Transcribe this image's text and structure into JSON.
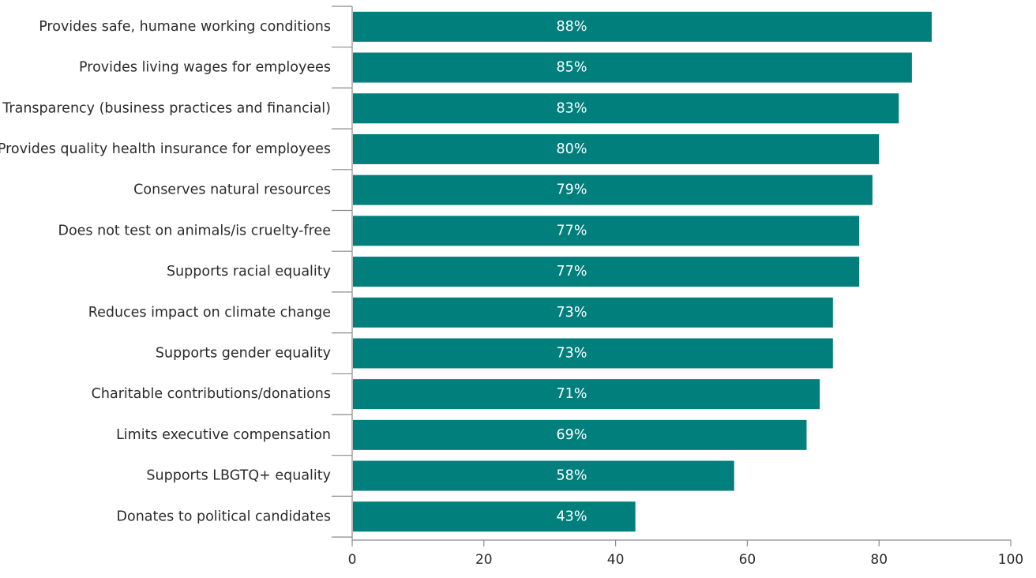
{
  "chart_data": {
    "type": "bar",
    "orientation": "horizontal",
    "categories": [
      "Provides safe, humane working conditions",
      "Provides living wages for employees",
      "Transparency (business practices and financial)",
      "Provides quality health insurance for employees",
      "Conserves natural resources",
      "Does not test on animals/is cruelty-free",
      "Supports racial equality",
      "Reduces impact on climate change",
      "Supports gender equality",
      "Charitable contributions/donations",
      "Limits executive compensation",
      "Supports LBGTQ+ equality",
      "Donates to political candidates"
    ],
    "values": [
      88,
      85,
      83,
      80,
      79,
      77,
      77,
      73,
      73,
      71,
      69,
      58,
      43
    ],
    "value_labels": [
      "88%",
      "85%",
      "83%",
      "80%",
      "79%",
      "77%",
      "77%",
      "73%",
      "73%",
      "71%",
      "69%",
      "58%",
      "43%"
    ],
    "xlim": [
      0,
      100
    ],
    "xticks": [
      0,
      20,
      40,
      60,
      80,
      100
    ],
    "title": "",
    "xlabel": "",
    "ylabel": "",
    "grid": false,
    "legend": "none",
    "colors": {
      "bar": "#007f7d",
      "bar_label": "#ffffff",
      "axis": "#8a8a8a",
      "text": "#2b2b2b"
    }
  }
}
